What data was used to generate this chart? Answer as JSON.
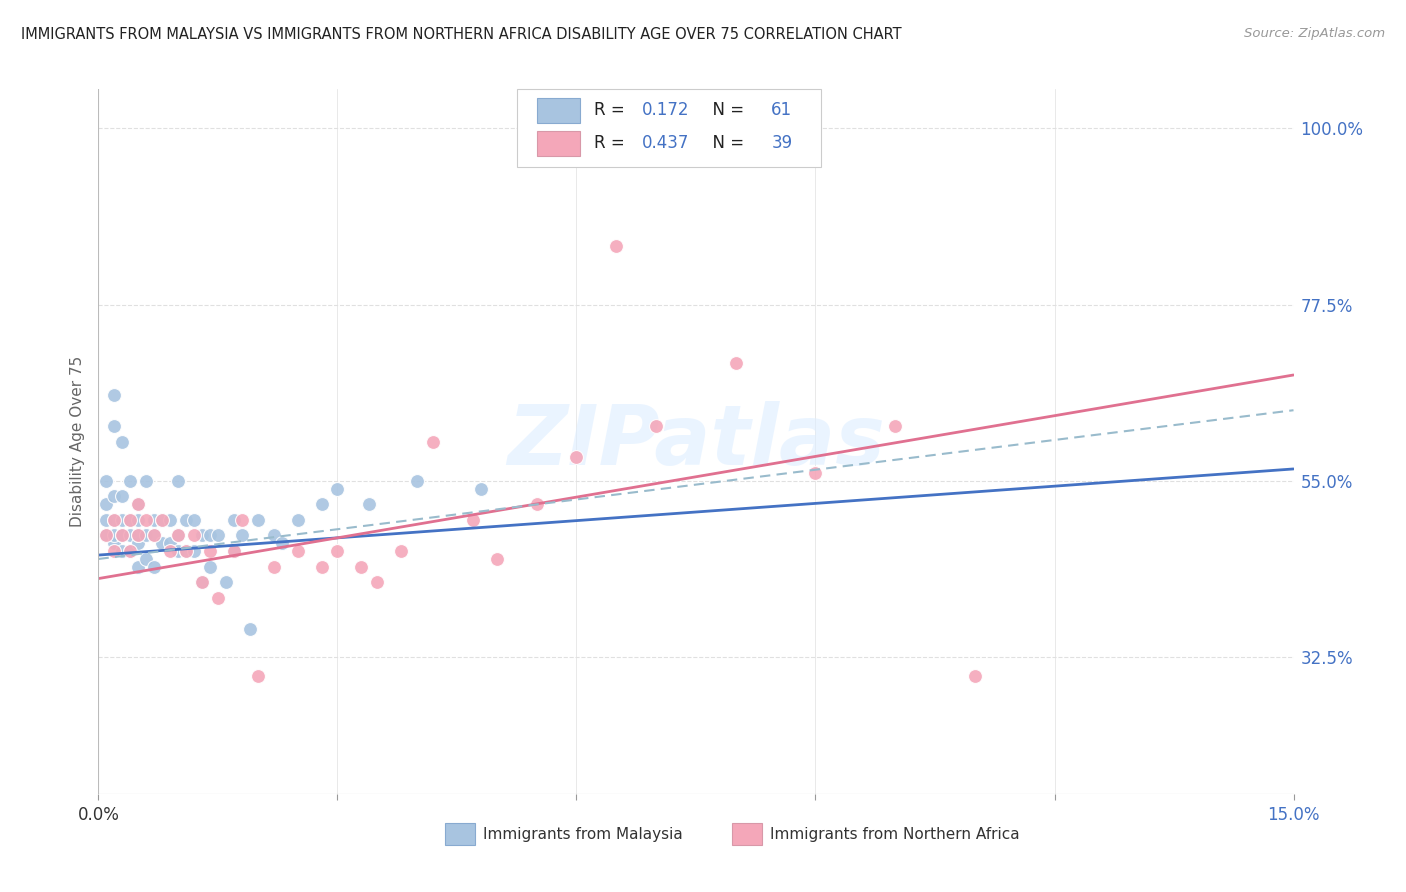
{
  "title": "IMMIGRANTS FROM MALAYSIA VS IMMIGRANTS FROM NORTHERN AFRICA DISABILITY AGE OVER 75 CORRELATION CHART",
  "source": "Source: ZipAtlas.com",
  "ylabel": "Disability Age Over 75",
  "malaysia_color": "#a8c4e0",
  "nafrica_color": "#f4a7b9",
  "malaysia_line_color": "#4472c4",
  "nafrica_line_color": "#e07090",
  "dashed_line_color": "#99bbcc",
  "malaysia_R": 0.172,
  "malaysia_N": 61,
  "nafrica_R": 0.437,
  "nafrica_N": 39,
  "xlim": [
    0.0,
    0.15
  ],
  "ylim": [
    0.15,
    1.05
  ],
  "right_yticks": [
    1.0,
    0.775,
    0.55,
    0.325
  ],
  "right_ytick_labels": [
    "100.0%",
    "77.5%",
    "55.0%",
    "32.5%"
  ],
  "right_tick_color": "#4472c4",
  "left_tick_color": "#4472c4",
  "grid_color": "#e0e0e0",
  "background_color": "#ffffff",
  "watermark": "ZIPatlas",
  "watermark_color": "#ddeeff",
  "malaysia_x": [
    0.001,
    0.001,
    0.001,
    0.001,
    0.002,
    0.002,
    0.002,
    0.002,
    0.002,
    0.002,
    0.003,
    0.003,
    0.003,
    0.003,
    0.003,
    0.003,
    0.004,
    0.004,
    0.004,
    0.004,
    0.005,
    0.005,
    0.005,
    0.005,
    0.005,
    0.006,
    0.006,
    0.006,
    0.007,
    0.007,
    0.007,
    0.008,
    0.008,
    0.009,
    0.009,
    0.01,
    0.01,
    0.01,
    0.011,
    0.011,
    0.012,
    0.012,
    0.013,
    0.013,
    0.014,
    0.014,
    0.015,
    0.016,
    0.017,
    0.017,
    0.018,
    0.019,
    0.02,
    0.022,
    0.023,
    0.025,
    0.028,
    0.03,
    0.034,
    0.04,
    0.048
  ],
  "malaysia_y": [
    0.48,
    0.5,
    0.52,
    0.55,
    0.47,
    0.48,
    0.5,
    0.53,
    0.62,
    0.66,
    0.46,
    0.48,
    0.48,
    0.5,
    0.53,
    0.6,
    0.46,
    0.48,
    0.5,
    0.55,
    0.44,
    0.47,
    0.48,
    0.5,
    0.52,
    0.45,
    0.48,
    0.55,
    0.44,
    0.48,
    0.5,
    0.47,
    0.5,
    0.47,
    0.5,
    0.46,
    0.48,
    0.55,
    0.46,
    0.5,
    0.46,
    0.5,
    0.42,
    0.48,
    0.44,
    0.48,
    0.48,
    0.42,
    0.46,
    0.5,
    0.48,
    0.36,
    0.5,
    0.48,
    0.47,
    0.5,
    0.52,
    0.54,
    0.52,
    0.55,
    0.54
  ],
  "nafrica_x": [
    0.001,
    0.002,
    0.002,
    0.003,
    0.004,
    0.004,
    0.005,
    0.005,
    0.006,
    0.007,
    0.008,
    0.009,
    0.01,
    0.011,
    0.012,
    0.013,
    0.014,
    0.015,
    0.017,
    0.018,
    0.02,
    0.022,
    0.025,
    0.028,
    0.03,
    0.033,
    0.035,
    0.038,
    0.042,
    0.047,
    0.05,
    0.055,
    0.06,
    0.065,
    0.07,
    0.08,
    0.09,
    0.1,
    0.11
  ],
  "nafrica_y": [
    0.48,
    0.46,
    0.5,
    0.48,
    0.46,
    0.5,
    0.48,
    0.52,
    0.5,
    0.48,
    0.5,
    0.46,
    0.48,
    0.46,
    0.48,
    0.42,
    0.46,
    0.4,
    0.46,
    0.5,
    0.3,
    0.44,
    0.46,
    0.44,
    0.46,
    0.44,
    0.42,
    0.46,
    0.6,
    0.5,
    0.45,
    0.52,
    0.58,
    0.85,
    0.62,
    0.7,
    0.56,
    0.62,
    0.3
  ],
  "malaysia_trend_x0": 0.0,
  "malaysia_trend_y0": 0.455,
  "malaysia_trend_x1": 0.15,
  "malaysia_trend_y1": 0.565,
  "nafrica_trend_x0": 0.0,
  "nafrica_trend_y0": 0.425,
  "nafrica_trend_x1": 0.15,
  "nafrica_trend_y1": 0.685,
  "dashed_trend_x0": 0.0,
  "dashed_trend_y0": 0.45,
  "dashed_trend_x1": 0.15,
  "dashed_trend_y1": 0.64
}
